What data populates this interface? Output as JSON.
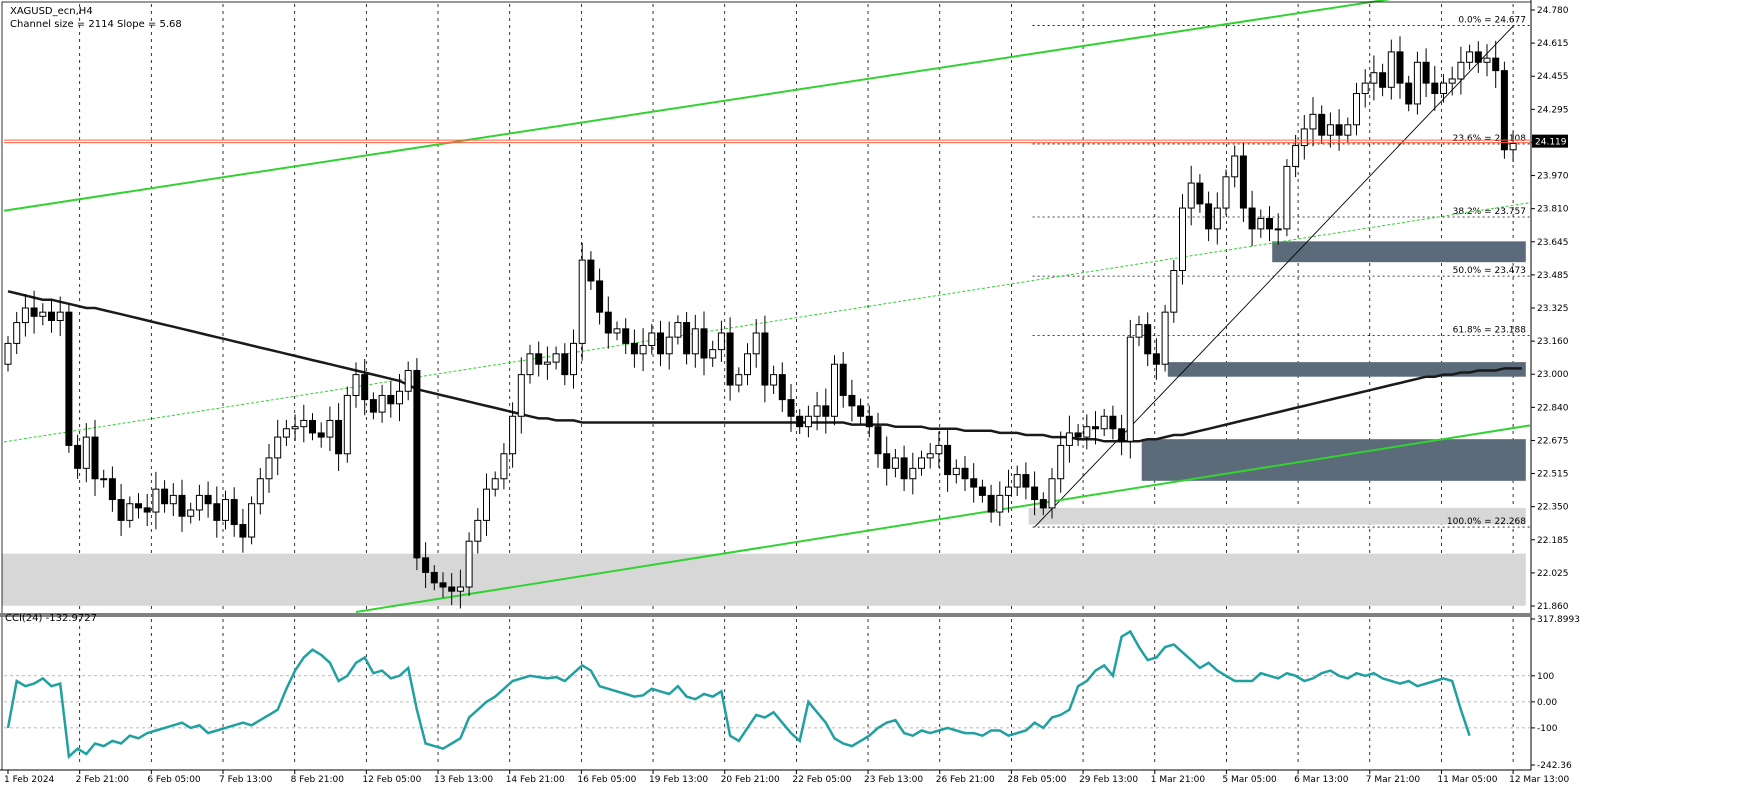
{
  "header": {
    "symbol_label": "XAGUSD_ecn,H4",
    "channel_info": "Channel size = 2114 Slope = 5.68"
  },
  "oscillator": {
    "label": "CCI(24) -132.9727"
  },
  "colors": {
    "bull_candle": "#ffffff",
    "bear_candle": "#000000",
    "moving_average": "#1a1a1a",
    "channel": "#32d232",
    "cci": "#20a0a0",
    "price_line": "#ff5f3f",
    "zone_dark": "#5c6b7a",
    "zone_light": "#d7d7d7"
  },
  "chart_data": [
    {
      "type": "candlestick",
      "symbol": "XAGUSD_ecn",
      "timeframe": "H4",
      "current_price": "24.119",
      "y_ticks": [
        "24.780",
        "24.615",
        "24.455",
        "24.295",
        "24.130",
        "23.970",
        "23.810",
        "23.645",
        "23.485",
        "23.325",
        "23.160",
        "23.000",
        "22.840",
        "22.675",
        "22.515",
        "22.350",
        "22.185",
        "22.025",
        "21.860"
      ],
      "x_ticks": [
        "1 Feb 2024",
        "2 Feb 21:00",
        "6 Feb 05:00",
        "7 Feb 13:00",
        "8 Feb 21:00",
        "12 Feb 05:00",
        "13 Feb 13:00",
        "14 Feb 21:00",
        "16 Feb 05:00",
        "19 Feb 13:00",
        "20 Feb 21:00",
        "22 Feb 05:00",
        "23 Feb 13:00",
        "26 Feb 21:00",
        "28 Feb 05:00",
        "29 Feb 13:00",
        "1 Mar 21:00",
        "5 Mar 05:00",
        "6 Mar 13:00",
        "7 Mar 21:00",
        "11 Mar 05:00",
        "12 Mar 13:00"
      ],
      "ylim": [
        21.86,
        24.78
      ],
      "fibonacci": [
        {
          "label": "0.0% = 24.677",
          "price": 24.677
        },
        {
          "label": "23.6% = 24.108",
          "price": 24.108
        },
        {
          "label": "38.2% = 23.757",
          "price": 23.757
        },
        {
          "label": "50.0% = 23.473",
          "price": 23.473
        },
        {
          "label": "61.8% = 23.188",
          "price": 23.188
        },
        {
          "label": "100.0% = 22.268",
          "price": 22.268
        }
      ],
      "series": [
        {
          "name": "candles",
          "close": [
            23.15,
            23.25,
            23.32,
            23.28,
            23.3,
            23.26,
            23.3,
            22.66,
            22.55,
            22.7,
            22.5,
            22.5,
            22.4,
            22.3,
            22.38,
            22.36,
            22.34,
            22.45,
            22.38,
            22.42,
            22.32,
            22.35,
            22.42,
            22.38,
            22.3,
            22.4,
            22.28,
            22.22,
            22.38,
            22.5,
            22.6,
            22.7,
            22.74,
            22.75,
            22.78,
            22.72,
            22.7,
            22.78,
            22.62,
            22.9,
            23.0,
            22.88,
            22.82,
            22.9,
            22.86,
            22.92,
            23.02,
            22.12,
            22.05,
            22.0,
            21.98,
            21.96,
            21.98,
            22.2,
            22.3,
            22.45,
            22.5,
            22.62,
            22.8,
            23.0,
            23.1,
            23.05,
            23.06,
            23.1,
            23.0,
            23.15,
            23.55,
            23.45,
            23.3,
            23.2,
            23.22,
            23.15,
            23.1,
            23.14,
            23.2,
            23.1,
            23.18,
            23.25,
            23.1,
            23.22,
            23.08,
            23.12,
            23.2,
            22.95,
            23.0,
            23.1,
            23.2,
            22.95,
            23.0,
            22.88,
            22.8,
            22.75,
            22.8,
            22.85,
            22.8,
            23.05,
            22.9,
            22.85,
            22.8,
            22.75,
            22.62,
            22.55,
            22.6,
            22.5,
            22.55,
            22.6,
            22.62,
            22.66,
            22.52,
            22.55,
            22.5,
            22.46,
            22.42,
            22.34,
            22.42,
            22.46,
            22.52,
            22.46,
            22.4,
            22.36,
            22.5,
            22.66,
            22.72,
            22.7,
            22.75,
            22.74,
            22.8,
            22.74,
            22.68,
            23.18,
            23.24,
            23.1,
            23.05,
            23.3,
            23.5,
            23.8,
            23.92,
            23.82,
            23.7,
            23.8,
            23.95,
            24.05,
            23.8,
            23.7,
            23.75,
            23.7,
            23.7,
            24.0,
            24.1,
            24.18,
            24.25,
            24.15,
            24.2,
            24.15,
            24.2,
            24.35,
            24.4,
            24.45,
            24.38,
            24.55,
            24.4,
            24.3,
            24.5,
            24.4,
            24.35,
            24.4,
            24.42,
            24.5,
            24.55,
            24.5,
            24.52,
            24.46,
            24.08,
            24.11
          ],
          "ma": [
            23.4,
            23.39,
            23.38,
            23.37,
            23.36,
            23.36,
            23.35,
            23.34,
            23.33,
            23.32,
            23.32,
            23.31,
            23.3,
            23.29,
            23.28,
            23.27,
            23.26,
            23.25,
            23.24,
            23.23,
            23.22,
            23.21,
            23.2,
            23.19,
            23.18,
            23.17,
            23.16,
            23.15,
            23.14,
            23.13,
            23.12,
            23.11,
            23.1,
            23.09,
            23.08,
            23.07,
            23.06,
            23.05,
            23.04,
            23.03,
            23.02,
            23.01,
            23.0,
            22.99,
            22.98,
            22.97,
            22.95,
            22.93,
            22.92,
            22.91,
            22.9,
            22.89,
            22.88,
            22.87,
            22.86,
            22.85,
            22.84,
            22.83,
            22.82,
            22.81,
            22.8,
            22.79,
            22.79,
            22.78,
            22.78,
            22.78,
            22.77,
            22.77,
            22.77,
            22.77,
            22.77,
            22.77,
            22.77,
            22.77,
            22.77,
            22.77,
            22.77,
            22.77,
            22.77,
            22.77,
            22.77,
            22.77,
            22.77,
            22.77,
            22.77,
            22.77,
            22.77,
            22.77,
            22.77,
            22.77,
            22.77,
            22.77,
            22.77,
            22.77,
            22.77,
            22.77,
            22.77,
            22.76,
            22.76,
            22.76,
            22.76,
            22.76,
            22.75,
            22.75,
            22.75,
            22.75,
            22.74,
            22.74,
            22.74,
            22.74,
            22.73,
            22.73,
            22.73,
            22.73,
            22.72,
            22.72,
            22.72,
            22.71,
            22.71,
            22.71,
            22.7,
            22.7,
            22.7,
            22.69,
            22.69,
            22.69,
            22.68,
            22.68,
            22.68,
            22.68,
            22.68,
            22.69,
            22.69,
            22.7,
            22.71,
            22.71,
            22.72,
            22.73,
            22.74,
            22.75,
            22.76,
            22.77,
            22.78,
            22.79,
            22.8,
            22.81,
            22.82,
            22.83,
            22.84,
            22.85,
            22.86,
            22.87,
            22.88,
            22.89,
            22.9,
            22.91,
            22.92,
            22.93,
            22.94,
            22.95,
            22.96,
            22.97,
            22.98,
            22.99,
            22.99,
            23.0,
            23.0,
            23.01,
            23.01,
            23.02,
            23.02,
            23.02,
            23.03,
            23.03,
            23.03
          ]
        }
      ],
      "channel": {
        "upper": [
          [
            0,
            23.79
          ],
          [
            174,
            24.9
          ]
        ],
        "middle": [
          [
            0,
            22.68
          ],
          [
            174,
            23.82
          ]
        ],
        "lower": [
          [
            40,
            21.86
          ],
          [
            174,
            22.75
          ]
        ]
      },
      "fib_trend": [
        [
          118,
          22.268
        ],
        [
          174,
          24.677
        ]
      ],
      "zones": [
        {
          "kind": "dark",
          "start": 146,
          "end": 174,
          "top": 23.64,
          "bottom": 23.54
        },
        {
          "kind": "dark",
          "start": 134,
          "end": 174,
          "top": 23.06,
          "bottom": 22.99
        },
        {
          "kind": "dark",
          "start": 131,
          "end": 174,
          "top": 22.69,
          "bottom": 22.49
        },
        {
          "kind": "light",
          "start": 118,
          "end": 174,
          "top": 22.36,
          "bottom": 22.28
        },
        {
          "kind": "light",
          "start": 0,
          "end": 174,
          "top": 22.14,
          "bottom": 21.89
        }
      ]
    },
    {
      "type": "line",
      "name": "CCI(24)",
      "y_ticks": [
        "317.8993",
        "100",
        "0.00",
        "-100",
        "-242.36"
      ],
      "ylim": [
        -242.36,
        317.89
      ],
      "levels": [
        100,
        0,
        -100
      ],
      "values": [
        -100,
        80,
        60,
        70,
        90,
        60,
        70,
        -210,
        -180,
        -200,
        -160,
        -170,
        -150,
        -160,
        -130,
        -140,
        -120,
        -110,
        -100,
        -90,
        -80,
        -100,
        -90,
        -120,
        -110,
        -100,
        -90,
        -80,
        -90,
        -70,
        -50,
        -30,
        50,
        120,
        170,
        200,
        180,
        150,
        80,
        100,
        150,
        170,
        110,
        120,
        90,
        100,
        130,
        -30,
        -160,
        -170,
        -180,
        -160,
        -140,
        -60,
        -30,
        0,
        20,
        50,
        80,
        90,
        100,
        95,
        90,
        95,
        80,
        110,
        140,
        120,
        60,
        50,
        40,
        30,
        20,
        25,
        50,
        40,
        30,
        60,
        20,
        10,
        30,
        20,
        40,
        -130,
        -150,
        -100,
        -50,
        -60,
        -40,
        -80,
        -120,
        -150,
        0,
        -40,
        -80,
        -140,
        -160,
        -170,
        -150,
        -130,
        -100,
        -80,
        -70,
        -120,
        -130,
        -110,
        -120,
        -110,
        -100,
        -110,
        -120,
        -120,
        -130,
        -110,
        -110,
        -130,
        -120,
        -110,
        -80,
        -100,
        -60,
        -50,
        -30,
        60,
        80,
        120,
        140,
        100,
        250,
        270,
        210,
        160,
        170,
        210,
        220,
        190,
        160,
        130,
        150,
        120,
        100,
        80,
        80,
        80,
        110,
        100,
        90,
        110,
        100,
        80,
        90,
        110,
        120,
        100,
        90,
        110,
        100,
        110,
        90,
        80,
        70,
        80,
        60,
        70,
        80,
        90,
        80,
        -30,
        -130
      ]
    }
  ]
}
